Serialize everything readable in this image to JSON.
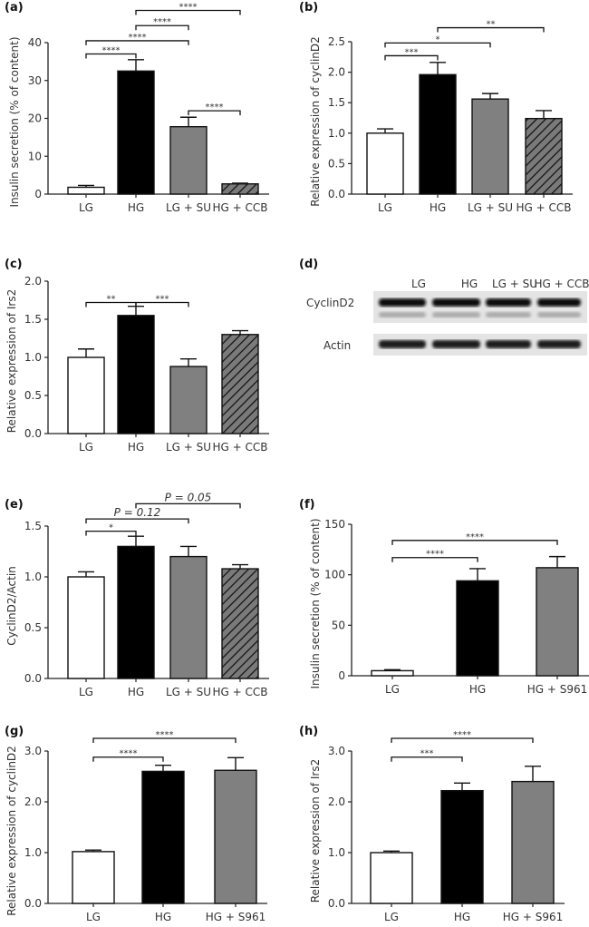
{
  "chart_data": [
    {
      "panel": "(a)",
      "type": "bar",
      "categories": [
        "LG",
        "HG",
        "LG + SU",
        "HG + CCB"
      ],
      "values": [
        1.8,
        32.5,
        17.8,
        2.7
      ],
      "errors": [
        0.5,
        3.0,
        2.5,
        0.2
      ],
      "ylabel": "Insulin secretion (% of content)",
      "ylim": [
        0,
        40
      ],
      "yticks": [
        "0",
        "10",
        "20",
        "30",
        "40"
      ],
      "fills": [
        "white",
        "black",
        "gray",
        "hatched"
      ],
      "significance": [
        {
          "from": 0,
          "to": 1,
          "label": "****",
          "level": 37
        },
        {
          "from": 0,
          "to": 2,
          "label": "****",
          "level": 40.5
        },
        {
          "from": 1,
          "to": 2,
          "label": "****",
          "level": 44.5
        },
        {
          "from": 1,
          "to": 3,
          "label": "****",
          "level": 48.5
        },
        {
          "from": 2,
          "to": 3,
          "label": "****",
          "level": 22
        }
      ]
    },
    {
      "panel": "(b)",
      "type": "bar",
      "categories": [
        "LG",
        "HG",
        "LG + SU",
        "HG + CCB"
      ],
      "values": [
        1.0,
        1.96,
        1.56,
        1.24
      ],
      "errors": [
        0.07,
        0.2,
        0.09,
        0.13
      ],
      "ylabel": "Relative expression of cyclinD2",
      "ylim": [
        0,
        2.5
      ],
      "yticks": [
        "0.0",
        "0.5",
        "1.0",
        "1.5",
        "2.0",
        "2.5"
      ],
      "fills": [
        "white",
        "black",
        "gray",
        "hatched"
      ],
      "significance": [
        {
          "from": 0,
          "to": 1,
          "label": "***",
          "level": 2.27
        },
        {
          "from": 0,
          "to": 2,
          "label": "*",
          "level": 2.48
        },
        {
          "from": 1,
          "to": 3,
          "label": "**",
          "level": 2.73
        }
      ]
    },
    {
      "panel": "(c)",
      "type": "bar",
      "categories": [
        "LG",
        "HG",
        "LG + SU",
        "HG + CCB"
      ],
      "values": [
        1.0,
        1.55,
        0.88,
        1.3
      ],
      "errors": [
        0.11,
        0.12,
        0.1,
        0.05
      ],
      "ylabel": "Relative expression of Irs2",
      "ylim": [
        0,
        2.0
      ],
      "yticks": [
        "0.0",
        "0.5",
        "1.0",
        "1.5",
        "2.0"
      ],
      "fills": [
        "white",
        "black",
        "gray",
        "hatched"
      ],
      "significance": [
        {
          "from": 0,
          "to": 1,
          "label": "**",
          "level": 1.72
        },
        {
          "from": 1,
          "to": 2,
          "label": "***",
          "level": 1.72
        }
      ]
    },
    {
      "panel": "(e)",
      "type": "bar",
      "categories": [
        "LG",
        "HG",
        "LG + SU",
        "HG + CCB"
      ],
      "values": [
        1.0,
        1.3,
        1.2,
        1.08
      ],
      "errors": [
        0.05,
        0.1,
        0.1,
        0.04
      ],
      "ylabel": "CyclinD2/Actin",
      "ylim": [
        0,
        1.5
      ],
      "yticks": [
        "0.0",
        "0.5",
        "1.0",
        "1.5"
      ],
      "fills": [
        "white",
        "black",
        "gray",
        "hatched"
      ],
      "significance": [
        {
          "from": 0,
          "to": 1,
          "label": "*",
          "level": 1.45
        },
        {
          "from": 0,
          "to": 2,
          "label": "P = 0.12",
          "level": 1.57
        },
        {
          "from": 1,
          "to": 3,
          "label": "P = 0.05",
          "level": 1.72
        }
      ]
    },
    {
      "panel": "(f)",
      "type": "bar",
      "categories": [
        "LG",
        "HG",
        "HG + S961"
      ],
      "values": [
        5,
        94,
        107
      ],
      "errors": [
        1,
        12,
        11
      ],
      "ylabel": "Insulin secretion (% of content)",
      "ylim": [
        0,
        150
      ],
      "yticks": [
        "0",
        "50",
        "100",
        "150"
      ],
      "fills": [
        "white",
        "black",
        "gray"
      ],
      "significance": [
        {
          "from": 0,
          "to": 1,
          "label": "****",
          "level": 117
        },
        {
          "from": 0,
          "to": 2,
          "label": "****",
          "level": 134
        }
      ]
    },
    {
      "panel": "(g)",
      "type": "bar",
      "categories": [
        "LG",
        "HG",
        "HG + S961"
      ],
      "values": [
        1.02,
        2.6,
        2.62
      ],
      "errors": [
        0.03,
        0.12,
        0.25
      ],
      "ylabel": "Relative expression of cyclinD2",
      "ylim": [
        0,
        3.0
      ],
      "yticks": [
        "0.0",
        "1.0",
        "2.0",
        "3.0"
      ],
      "fills": [
        "white",
        "black",
        "gray"
      ],
      "significance": [
        {
          "from": 0,
          "to": 1,
          "label": "****",
          "level": 2.88
        },
        {
          "from": 0,
          "to": 2,
          "label": "****",
          "level": 3.25
        }
      ]
    },
    {
      "panel": "(h)",
      "type": "bar",
      "categories": [
        "LG",
        "HG",
        "HG + S961"
      ],
      "values": [
        1.0,
        2.22,
        2.4
      ],
      "errors": [
        0.03,
        0.15,
        0.3
      ],
      "ylabel": "Relative expression of Irs2",
      "ylim": [
        0,
        3.0
      ],
      "yticks": [
        "0.0",
        "1.0",
        "2.0",
        "3.0"
      ],
      "fills": [
        "white",
        "black",
        "gray"
      ],
      "significance": [
        {
          "from": 0,
          "to": 1,
          "label": "***",
          "level": 2.88
        },
        {
          "from": 0,
          "to": 2,
          "label": "****",
          "level": 3.25
        }
      ]
    }
  ],
  "blot": {
    "panel": "(d)",
    "lanes": [
      "LG",
      "HG",
      "LG + SU",
      "HG + CCB"
    ],
    "rows": [
      "CyclinD2",
      "Actin"
    ]
  },
  "colors": {
    "white": "#ffffff",
    "black": "#000000",
    "gray": "#808080",
    "hatched": "#7a7a7a"
  }
}
